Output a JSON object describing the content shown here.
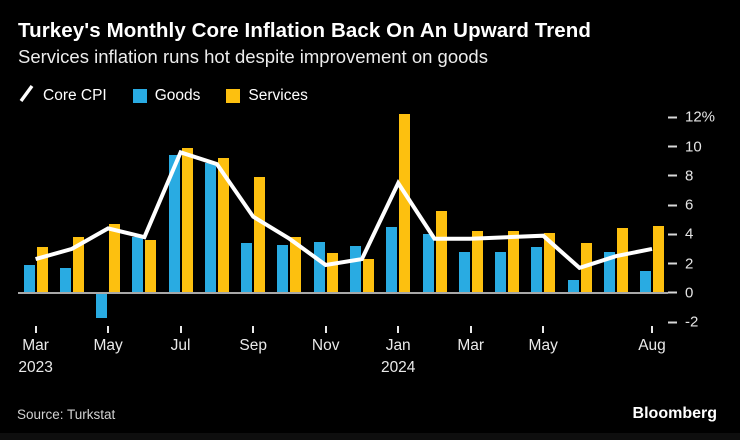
{
  "header": {
    "title": "Turkey's Monthly Core Inflation Back On An Upward Trend",
    "subtitle": "Services inflation runs hot despite improvement on goods"
  },
  "legend": {
    "items": [
      {
        "label": "Core CPI",
        "type": "line",
        "color": "#ffffff"
      },
      {
        "label": "Goods",
        "type": "square",
        "color": "#29abe2"
      },
      {
        "label": "Services",
        "type": "square",
        "color": "#fdc00f"
      }
    ]
  },
  "colors": {
    "background": "#000000",
    "goods": "#29abe2",
    "services": "#fdc00f",
    "core_line": "#ffffff",
    "zero_line": "#a8a8a8"
  },
  "y_axis": {
    "unit": "%",
    "labels": [
      "12%",
      "10",
      "8",
      "6",
      "4",
      "2",
      "0",
      "-2"
    ],
    "values": [
      12,
      10,
      8,
      6,
      4,
      2,
      0,
      -2
    ],
    "max": 12.5,
    "min": -2
  },
  "x_axis": {
    "tick_indices": [
      0,
      2,
      4,
      6,
      8,
      10,
      12,
      14,
      17
    ],
    "tick_labels": [
      "Mar",
      "May",
      "Jul",
      "Sep",
      "Nov",
      "Jan",
      "Mar",
      "May",
      "Aug"
    ],
    "year_labels": {
      "0": "2023",
      "10": "2024"
    }
  },
  "chart_data": {
    "type": "bar",
    "title": "Turkey's Monthly Core Inflation Back On An Upward Trend",
    "subtitle": "Services inflation runs hot despite improvement on goods",
    "unit": "%",
    "ylim": [
      -2,
      12.5
    ],
    "grid": false,
    "legend_position": "top-left",
    "categories": [
      "Mar 2023",
      "Apr 2023",
      "May 2023",
      "Jun 2023",
      "Jul 2023",
      "Aug 2023",
      "Sep 2023",
      "Oct 2023",
      "Nov 2023",
      "Dec 2023",
      "Jan 2024",
      "Feb 2024",
      "Mar 2024",
      "Apr 2024",
      "May 2024",
      "Jun 2024",
      "Jul 2024",
      "Aug 2024"
    ],
    "series": [
      {
        "name": "Core CPI",
        "type": "line",
        "color": "#ffffff",
        "values": [
          2.3,
          3.0,
          4.4,
          3.8,
          9.6,
          8.8,
          5.2,
          3.7,
          1.9,
          2.3,
          7.5,
          3.7,
          3.7,
          3.8,
          3.9,
          1.7,
          2.5,
          3.0
        ]
      },
      {
        "name": "Goods",
        "type": "bar",
        "color": "#29abe2",
        "values": [
          1.9,
          1.7,
          -1.7,
          3.8,
          9.4,
          8.9,
          3.4,
          3.3,
          3.5,
          3.2,
          4.5,
          4.0,
          2.8,
          2.8,
          3.1,
          0.9,
          2.8,
          1.5
        ]
      },
      {
        "name": "Services",
        "type": "bar",
        "color": "#fdc00f",
        "values": [
          3.1,
          3.8,
          4.7,
          3.6,
          9.9,
          9.2,
          7.9,
          3.8,
          2.7,
          2.3,
          12.2,
          5.6,
          4.2,
          4.2,
          4.1,
          3.4,
          4.4,
          4.6
        ]
      }
    ]
  },
  "footer": {
    "source": "Source: Turkstat",
    "brand": "Bloomberg"
  }
}
